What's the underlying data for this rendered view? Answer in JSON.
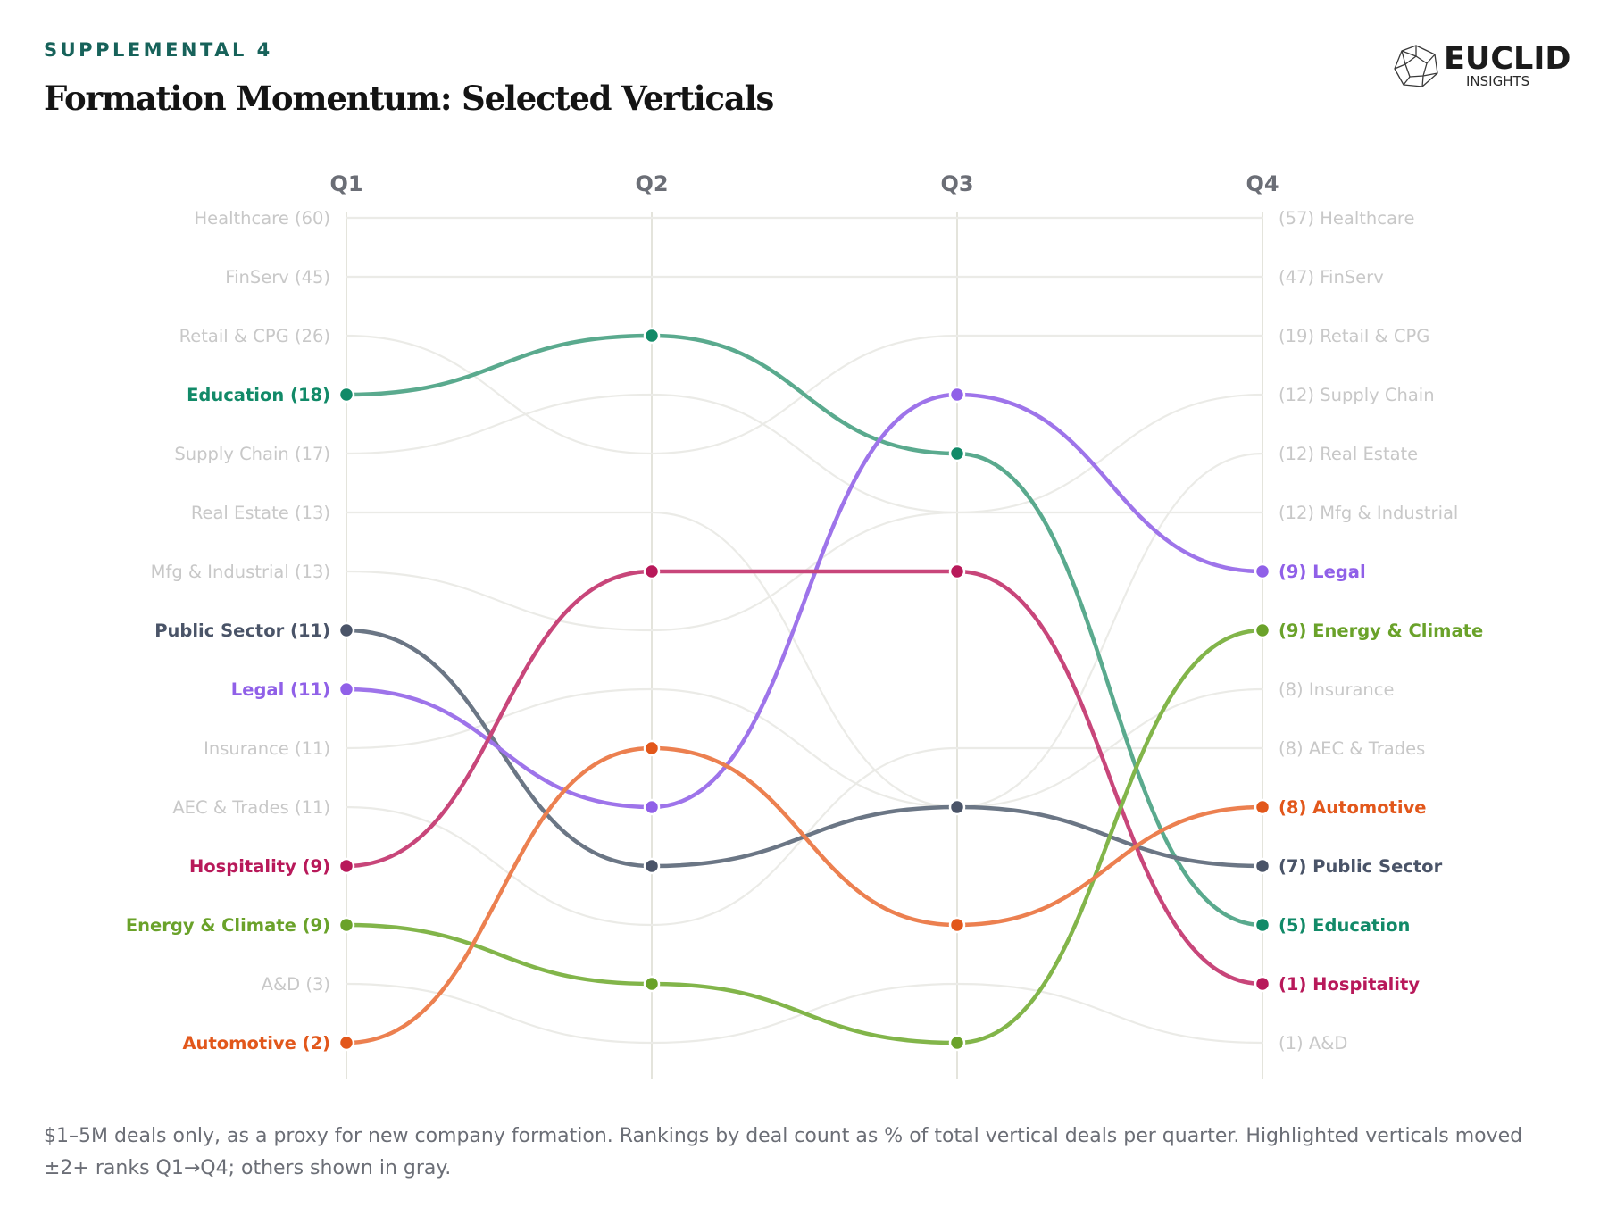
{
  "header": {
    "eyebrow": "SUPPLEMENTAL 4",
    "title": "Formation Momentum: Selected Verticals"
  },
  "logo": {
    "wordmark": "EUCLID",
    "subtitle": "INSIGHTS",
    "icon": "polyhedron-icon"
  },
  "footnote": "$1–5M deals only, as a proxy for new company formation. Rankings by deal count as % of total vertical deals per quarter. Highlighted verticals moved ±2+ ranks Q1→Q4; others shown in gray.",
  "colors": {
    "gray_line": "#ebebe7",
    "gray_label": "#c8c8c8",
    "axis": "#e4e4dc",
    "quarter_label": "#6b6e76"
  },
  "chart_data": {
    "type": "bump",
    "quarters": [
      "Q1",
      "Q2",
      "Q3",
      "Q4"
    ],
    "rank_range": [
      1,
      15
    ],
    "series": [
      {
        "name": "Healthcare",
        "highlight": false,
        "color": "#ebebe7",
        "ranks": [
          1,
          1,
          1,
          1
        ],
        "q1_label": "Healthcare (60)",
        "q4_label": "(57) Healthcare"
      },
      {
        "name": "FinServ",
        "highlight": false,
        "color": "#ebebe7",
        "ranks": [
          2,
          2,
          2,
          2
        ],
        "q1_label": "FinServ (45)",
        "q4_label": "(47) FinServ"
      },
      {
        "name": "Retail & CPG",
        "highlight": false,
        "color": "#ebebe7",
        "ranks": [
          3,
          5,
          3,
          3
        ],
        "q1_label": "Retail & CPG (26)",
        "q4_label": "(19) Retail & CPG"
      },
      {
        "name": "Supply Chain",
        "highlight": false,
        "color": "#ebebe7",
        "ranks": [
          5,
          4,
          6,
          4
        ],
        "q1_label": "Supply Chain (17)",
        "q4_label": "(12) Supply Chain"
      },
      {
        "name": "Real Estate",
        "highlight": false,
        "color": "#ebebe7",
        "ranks": [
          6,
          6,
          11,
          5
        ],
        "q1_label": "Real Estate (13)",
        "q4_label": "(12) Real Estate"
      },
      {
        "name": "Mfg & Industrial",
        "highlight": false,
        "color": "#ebebe7",
        "ranks": [
          7,
          8,
          6,
          6
        ],
        "q1_label": "Mfg & Industrial (13)",
        "q4_label": "(12) Mfg & Industrial"
      },
      {
        "name": "Insurance",
        "highlight": false,
        "color": "#ebebe7",
        "ranks": [
          10,
          9,
          11,
          9
        ],
        "q1_label": "Insurance (11)",
        "q4_label": "(8) Insurance"
      },
      {
        "name": "AEC & Trades",
        "highlight": false,
        "color": "#ebebe7",
        "ranks": [
          11,
          13,
          10,
          10
        ],
        "q1_label": "AEC & Trades (11)",
        "q4_label": "(8) AEC & Trades"
      },
      {
        "name": "A&D",
        "highlight": false,
        "color": "#ebebe7",
        "ranks": [
          14,
          15,
          14,
          15
        ],
        "q1_label": "A&D (3)",
        "q4_label": "(1) A&D"
      },
      {
        "name": "Education",
        "highlight": true,
        "color": "#5aaa8e",
        "dot": "#128a68",
        "text": "#128a68",
        "ranks": [
          4,
          3,
          5,
          13
        ],
        "q1_label": "Education (18)",
        "q4_label": "(5) Education"
      },
      {
        "name": "Public Sector",
        "highlight": true,
        "color": "#6b7685",
        "dot": "#4a5468",
        "text": "#4a5468",
        "ranks": [
          8,
          12,
          11,
          12
        ],
        "q1_label": "Public Sector (11)",
        "q4_label": "(7) Public Sector"
      },
      {
        "name": "Legal",
        "highlight": true,
        "color": "#9e74ea",
        "dot": "#9060e8",
        "text": "#9060e8",
        "ranks": [
          9,
          11,
          4,
          7
        ],
        "q1_label": "Legal (11)",
        "q4_label": "(9) Legal"
      },
      {
        "name": "Hospitality",
        "highlight": true,
        "color": "#c8467a",
        "dot": "#b8195a",
        "text": "#b8195a",
        "ranks": [
          12,
          7,
          7,
          14
        ],
        "q1_label": "Hospitality (9)",
        "q4_label": "(1) Hospitality"
      },
      {
        "name": "Energy & Climate",
        "highlight": true,
        "color": "#82b54a",
        "dot": "#6aa22a",
        "text": "#6aa22a",
        "ranks": [
          13,
          14,
          15,
          8
        ],
        "q1_label": "Energy & Climate (9)",
        "q4_label": "(9) Energy & Climate"
      },
      {
        "name": "Automotive",
        "highlight": true,
        "color": "#ec8050",
        "dot": "#e2571b",
        "text": "#e2571b",
        "ranks": [
          15,
          10,
          13,
          11
        ],
        "q1_label": "Automotive (2)",
        "q4_label": "(8) Automotive"
      }
    ]
  }
}
